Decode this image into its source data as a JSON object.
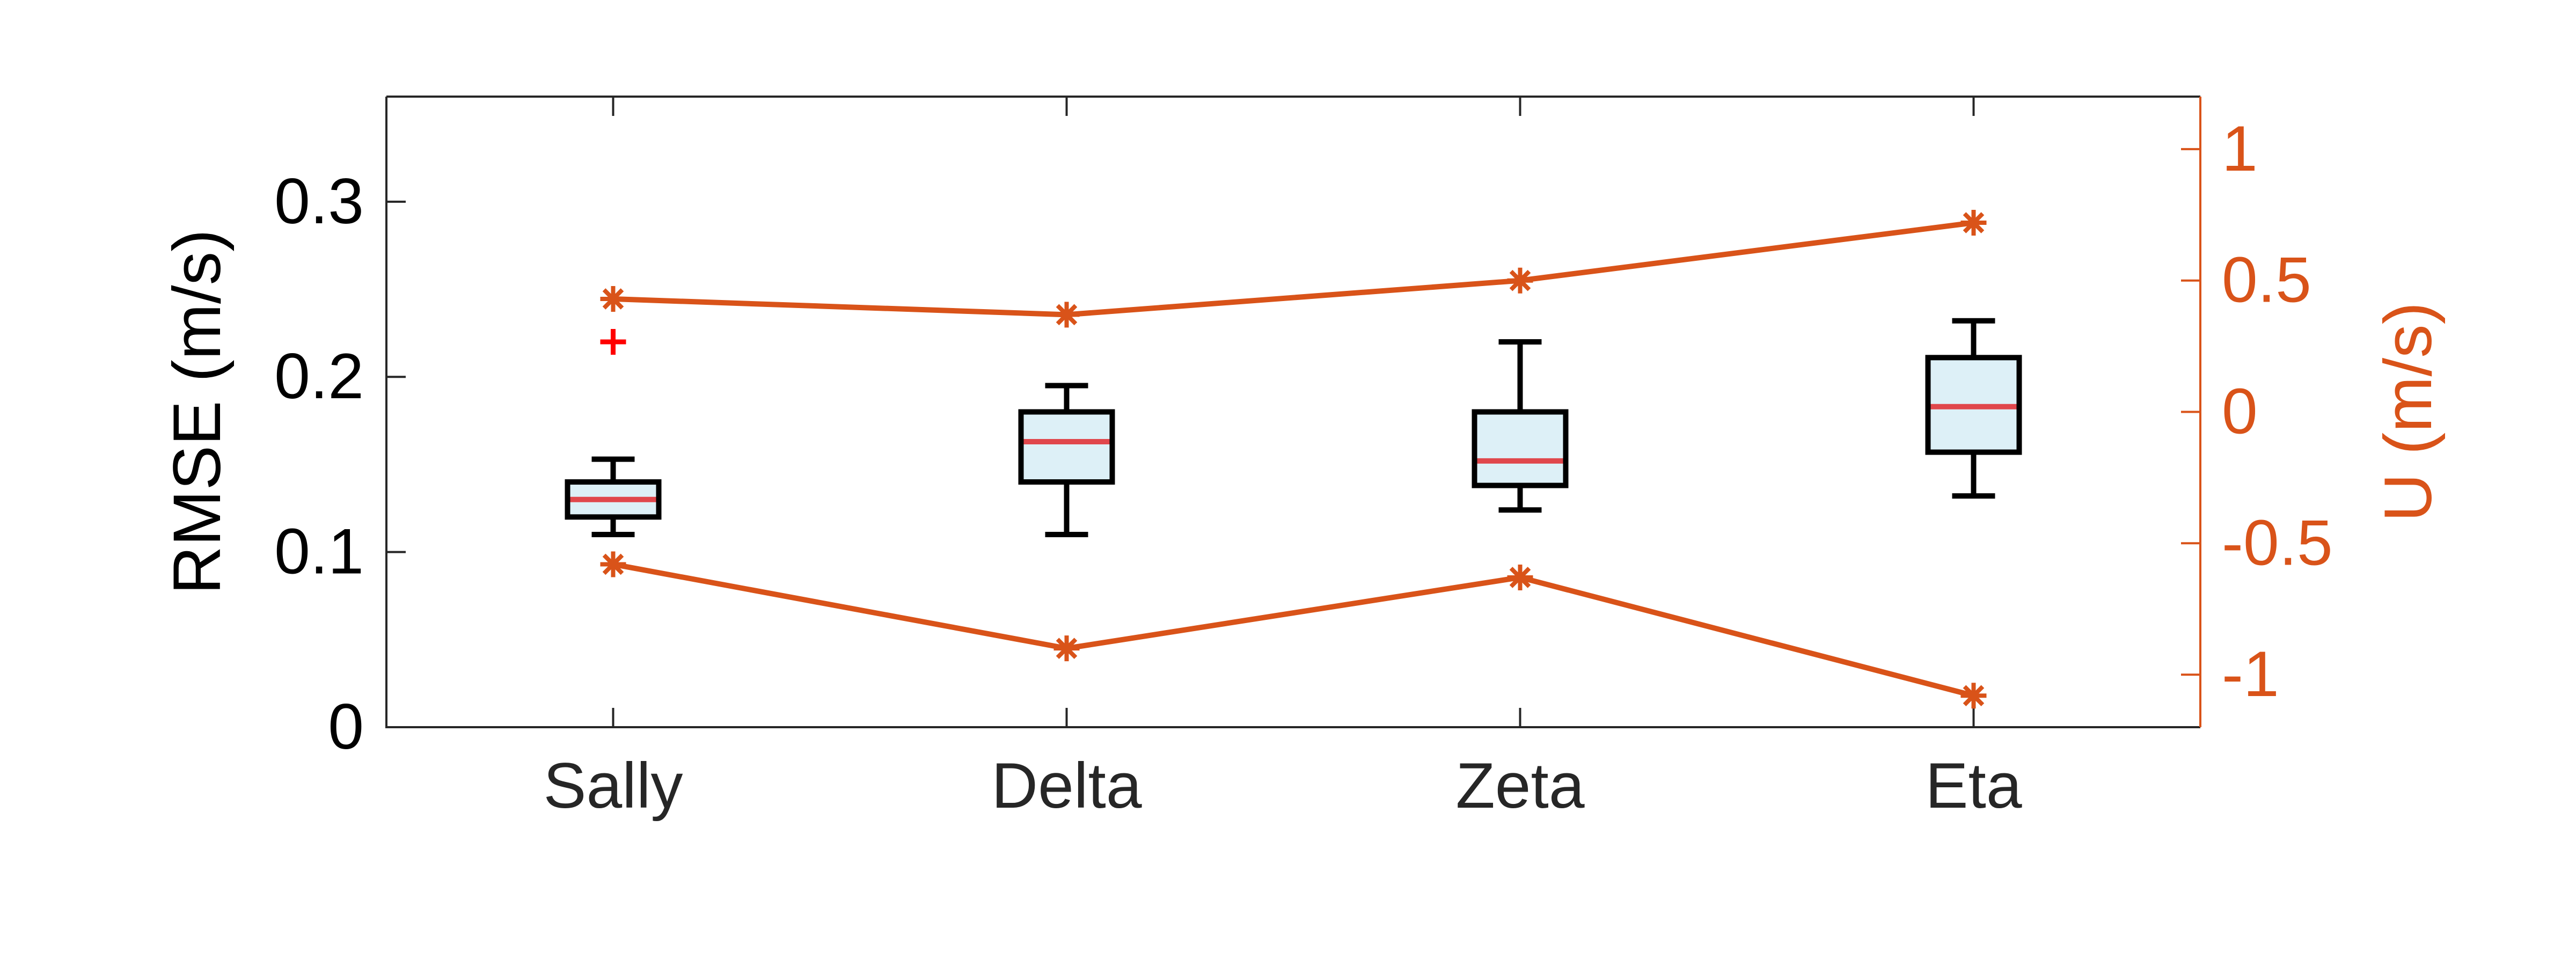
{
  "chart_data": {
    "type": "box",
    "categories": [
      "Sally",
      "Delta",
      "Zeta",
      "Eta"
    ],
    "ylabel": "RMSE (m/s)",
    "ylim": [
      0,
      0.36
    ],
    "yticks": [
      0,
      0.1,
      0.2,
      0.3
    ],
    "ytick_labels": [
      "0",
      "0.1",
      "0.2",
      "0.3"
    ],
    "boxes": [
      {
        "category": "Sally",
        "whisker_low": 0.11,
        "q1": 0.12,
        "median": 0.13,
        "q3": 0.14,
        "whisker_high": 0.153,
        "outliers": [
          0.22
        ]
      },
      {
        "category": "Delta",
        "whisker_low": 0.11,
        "q1": 0.14,
        "median": 0.163,
        "q3": 0.18,
        "whisker_high": 0.195,
        "outliers": []
      },
      {
        "category": "Zeta",
        "whisker_low": 0.124,
        "q1": 0.138,
        "median": 0.152,
        "q3": 0.18,
        "whisker_high": 0.22,
        "outliers": []
      },
      {
        "category": "Eta",
        "whisker_low": 0.132,
        "q1": 0.157,
        "median": 0.183,
        "q3": 0.211,
        "whisker_high": 0.232,
        "outliers": []
      }
    ],
    "y2label": "U (m/s)",
    "y2lim": [
      -1.2,
      1.2
    ],
    "y2ticks": [
      -1,
      -0.5,
      0,
      0.5,
      1
    ],
    "y2tick_labels": [
      "-1",
      "-0.5",
      "0",
      "0.5",
      "1"
    ],
    "series": [
      {
        "axis": "right",
        "values": [
          0.43,
          0.37,
          0.5,
          0.72
        ]
      },
      {
        "axis": "right",
        "values": [
          -0.58,
          -0.9,
          -0.63,
          -1.08
        ]
      }
    ],
    "grid": false,
    "colors": {
      "box_edge": "#000000",
      "box_fill": "#ddf0f7",
      "median": "#e0474c",
      "outlier": "#ff0000",
      "line": "#d95319",
      "axis": "#262626"
    }
  }
}
